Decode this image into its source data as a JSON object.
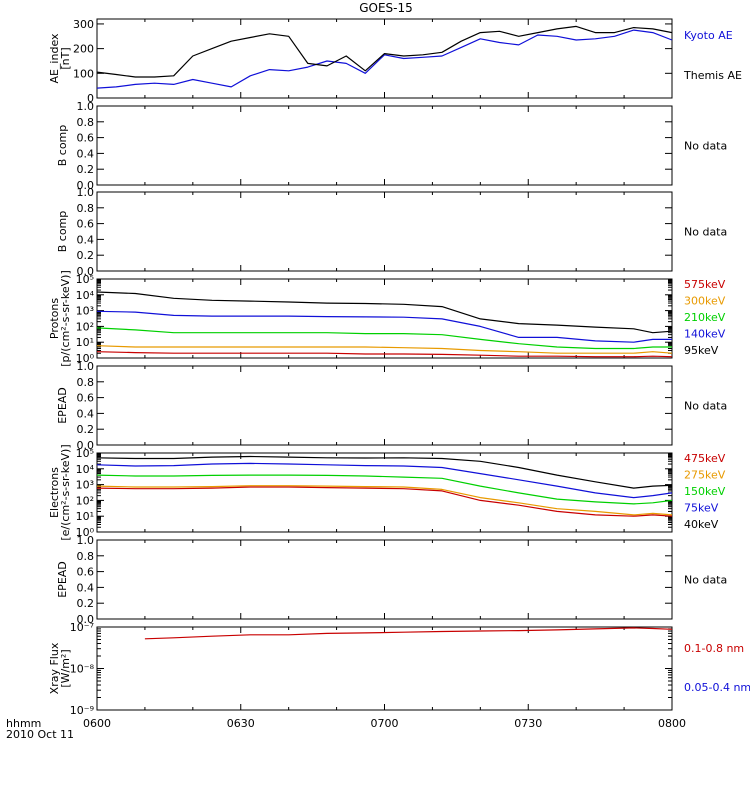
{
  "title": "GOES-15",
  "x_axis": {
    "ticks": [
      "0600",
      "0630",
      "0700",
      "0730",
      "0800"
    ],
    "label_line1": "hhmm",
    "label_line2": "2010 Oct 11",
    "range": [
      "06:00",
      "08:00"
    ]
  },
  "colors": {
    "black": "#000000",
    "blue": "#1010d8",
    "red": "#c80000",
    "orange": "#e89a00",
    "green": "#00d000"
  },
  "chart_data": [
    {
      "type": "line",
      "ylabel": [
        "AE_index",
        "[nT]"
      ],
      "yscale": "linear",
      "ylim": [
        0,
        320
      ],
      "yticks": [
        "0",
        "100",
        "200",
        "300"
      ],
      "ytick_values": [
        0,
        100,
        200,
        300
      ],
      "x_minutes": [
        0,
        4,
        8,
        12,
        16,
        20,
        24,
        28,
        32,
        36,
        40,
        44,
        48,
        52,
        56,
        60,
        64,
        68,
        72,
        76,
        80,
        84,
        88,
        92,
        96,
        100,
        104,
        108,
        112,
        116,
        120
      ],
      "series": [
        {
          "name": "Kyoto AE",
          "color": "#1010d8",
          "values": [
            40,
            45,
            55,
            60,
            55,
            75,
            60,
            45,
            90,
            115,
            110,
            125,
            150,
            140,
            100,
            175,
            160,
            165,
            170,
            205,
            240,
            225,
            215,
            255,
            250,
            235,
            240,
            250,
            275,
            265,
            235
          ]
        },
        {
          "name": "Themis AE",
          "color": "#000000",
          "values": [
            105,
            95,
            85,
            85,
            90,
            170,
            200,
            230,
            245,
            260,
            250,
            140,
            130,
            170,
            110,
            180,
            170,
            175,
            185,
            230,
            265,
            270,
            250,
            265,
            280,
            290,
            265,
            265,
            285,
            280,
            265
          ]
        }
      ],
      "no_data": ""
    },
    {
      "type": "line",
      "ylabel": [
        "B comp"
      ],
      "yscale": "linear",
      "ylim": [
        0,
        1
      ],
      "yticks": [
        "0.0",
        "0.2",
        "0.4",
        "0.6",
        "0.8",
        "1.0"
      ],
      "ytick_values": [
        0,
        0.2,
        0.4,
        0.6,
        0.8,
        1.0
      ],
      "series": [],
      "no_data": "No data"
    },
    {
      "type": "line",
      "ylabel": [
        "B comp"
      ],
      "yscale": "linear",
      "ylim": [
        0,
        1
      ],
      "yticks": [
        "0.0",
        "0.2",
        "0.4",
        "0.6",
        "0.8",
        "1.0"
      ],
      "ytick_values": [
        0,
        0.2,
        0.4,
        0.6,
        0.8,
        1.0
      ],
      "series": [],
      "no_data": "No data"
    },
    {
      "type": "line",
      "ylabel": [
        "Protons",
        "[p/(cm²-s-sr-keV)]"
      ],
      "yscale": "log",
      "ylim": [
        1,
        100000
      ],
      "yticks": [
        "10⁰",
        "10¹",
        "10²",
        "10³",
        "10⁴",
        "10⁵"
      ],
      "ytick_values": [
        1,
        10,
        100,
        1000,
        10000,
        100000
      ],
      "x_minutes": [
        0,
        8,
        16,
        24,
        32,
        40,
        48,
        56,
        64,
        72,
        80,
        88,
        96,
        104,
        112,
        116,
        120
      ],
      "series": [
        {
          "name": "575keV",
          "color": "#c80000",
          "values": [
            2.5,
            2.2,
            2.0,
            2.0,
            2.0,
            2.0,
            2.0,
            1.8,
            1.8,
            1.7,
            1.5,
            1.3,
            1.3,
            1.2,
            1.2,
            1.3,
            1.2
          ]
        },
        {
          "name": "300keV",
          "color": "#e89a00",
          "values": [
            6,
            5,
            5,
            5,
            5,
            5,
            5,
            5,
            4.5,
            4,
            3,
            2.5,
            2,
            2,
            2,
            2.5,
            2
          ]
        },
        {
          "name": "210keV",
          "color": "#00d000",
          "values": [
            80,
            60,
            40,
            40,
            40,
            40,
            40,
            35,
            35,
            30,
            15,
            8,
            5,
            4,
            4,
            5,
            5
          ]
        },
        {
          "name": "140keV",
          "color": "#1010d8",
          "values": [
            900,
            800,
            500,
            450,
            450,
            450,
            420,
            400,
            380,
            300,
            100,
            20,
            20,
            12,
            10,
            15,
            15
          ]
        },
        {
          "name": "95keV",
          "color": "#000000",
          "values": [
            15000,
            12000,
            6000,
            4500,
            4000,
            3500,
            3000,
            2800,
            2500,
            1800,
            300,
            150,
            120,
            90,
            70,
            40,
            50
          ]
        }
      ],
      "no_data": ""
    },
    {
      "type": "line",
      "ylabel": [
        "EPEAD"
      ],
      "yscale": "linear",
      "ylim": [
        0,
        1
      ],
      "yticks": [
        "0.0",
        "0.2",
        "0.4",
        "0.6",
        "0.8",
        "1.0"
      ],
      "ytick_values": [
        0,
        0.2,
        0.4,
        0.6,
        0.8,
        1.0
      ],
      "series": [],
      "no_data": "No data"
    },
    {
      "type": "line",
      "ylabel": [
        "Electrons",
        "[e/(cm²-s-sr-keV)]"
      ],
      "yscale": "log",
      "ylim": [
        1,
        100000
      ],
      "yticks": [
        "10⁰",
        "10¹",
        "10²",
        "10³",
        "10⁴",
        "10⁵"
      ],
      "ytick_values": [
        1,
        10,
        100,
        1000,
        10000,
        100000
      ],
      "x_minutes": [
        0,
        8,
        16,
        24,
        32,
        40,
        48,
        56,
        64,
        72,
        80,
        88,
        96,
        104,
        112,
        116,
        120
      ],
      "series": [
        {
          "name": "475keV",
          "color": "#c80000",
          "values": [
            600,
            550,
            550,
            600,
            700,
            700,
            650,
            600,
            550,
            400,
            100,
            50,
            20,
            12,
            10,
            12,
            10
          ]
        },
        {
          "name": "275keV",
          "color": "#e89a00",
          "values": [
            800,
            700,
            700,
            750,
            850,
            850,
            800,
            750,
            700,
            500,
            150,
            70,
            30,
            20,
            12,
            15,
            12
          ]
        },
        {
          "name": "150keV",
          "color": "#00d000",
          "values": [
            4000,
            3500,
            3500,
            3800,
            4000,
            4000,
            3800,
            3500,
            3000,
            2500,
            800,
            300,
            120,
            80,
            60,
            70,
            100
          ]
        },
        {
          "name": "75keV",
          "color": "#1010d8",
          "values": [
            18000,
            15000,
            16000,
            20000,
            22000,
            20000,
            18000,
            16000,
            15000,
            12000,
            5000,
            2000,
            800,
            300,
            150,
            200,
            300
          ]
        },
        {
          "name": "40keV",
          "color": "#000000",
          "values": [
            50000,
            45000,
            45000,
            55000,
            60000,
            55000,
            50000,
            48000,
            50000,
            45000,
            30000,
            12000,
            4000,
            1500,
            600,
            800,
            900
          ]
        }
      ],
      "no_data": ""
    },
    {
      "type": "line",
      "ylabel": [
        "EPEAD"
      ],
      "yscale": "linear",
      "ylim": [
        0,
        1
      ],
      "yticks": [
        "0.0",
        "0.2",
        "0.4",
        "0.6",
        "0.8",
        "1.0"
      ],
      "ytick_values": [
        0,
        0.2,
        0.4,
        0.6,
        0.8,
        1.0
      ],
      "series": [],
      "no_data": "No data"
    },
    {
      "type": "line",
      "ylabel": [
        "Xray Flux",
        "[W/m²]"
      ],
      "yscale": "log",
      "ylim": [
        1e-09,
        1e-07
      ],
      "yticks": [
        "10⁻⁹",
        "10⁻⁸",
        "10⁻⁷"
      ],
      "ytick_values": [
        1e-09,
        1e-08,
        1e-07
      ],
      "x_minutes": [
        10,
        16,
        24,
        32,
        40,
        48,
        56,
        64,
        72,
        80,
        88,
        96,
        104,
        112,
        116,
        120
      ],
      "series": [
        {
          "name": "0.1-0.8 nm",
          "color": "#c80000",
          "values": [
            5.2e-08,
            5.5e-08,
            6e-08,
            6.5e-08,
            6.5e-08,
            7e-08,
            7.2e-08,
            7.5e-08,
            7.8e-08,
            8e-08,
            8.2e-08,
            8.5e-08,
            9e-08,
            9.5e-08,
            9.2e-08,
            8.8e-08
          ]
        },
        {
          "name": "0.05-0.4 nm",
          "color": "#1010d8",
          "values": []
        }
      ],
      "no_data": ""
    }
  ]
}
